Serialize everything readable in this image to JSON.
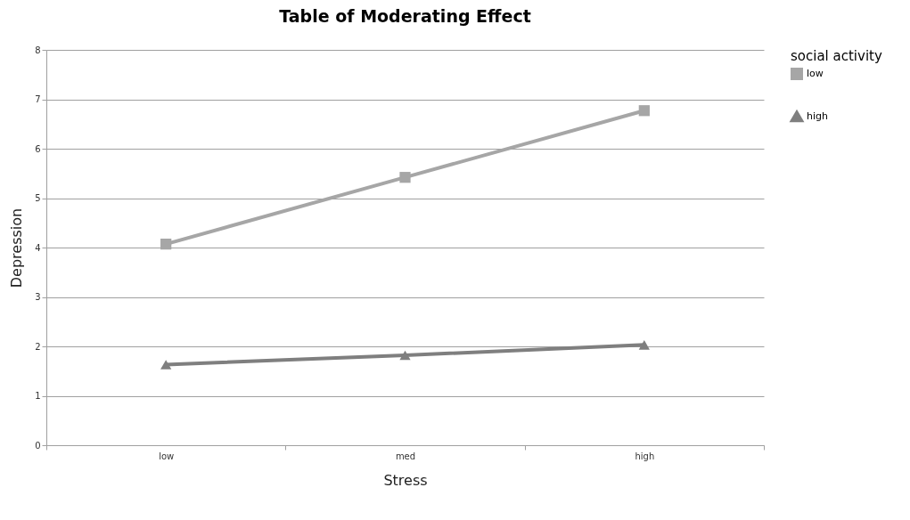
{
  "chart_data": {
    "type": "line",
    "title": "Table of Moderating Effect",
    "xlabel": "Stress",
    "ylabel": "Depression",
    "legend_title": "social activity",
    "categories": [
      "low",
      "med",
      "high"
    ],
    "series": [
      {
        "name": "low",
        "color": "#a6a6a6",
        "marker": "square",
        "values": [
          4.07,
          5.42,
          6.77
        ]
      },
      {
        "name": "high",
        "color": "#7f7f7f",
        "marker": "triangle",
        "values": [
          1.63,
          1.82,
          2.03
        ]
      }
    ],
    "ylim": [
      0,
      8
    ],
    "yticks": [
      0,
      1,
      2,
      3,
      4,
      5,
      6,
      7,
      8
    ],
    "grid": "y",
    "legend": "right",
    "line_style": "solid"
  }
}
